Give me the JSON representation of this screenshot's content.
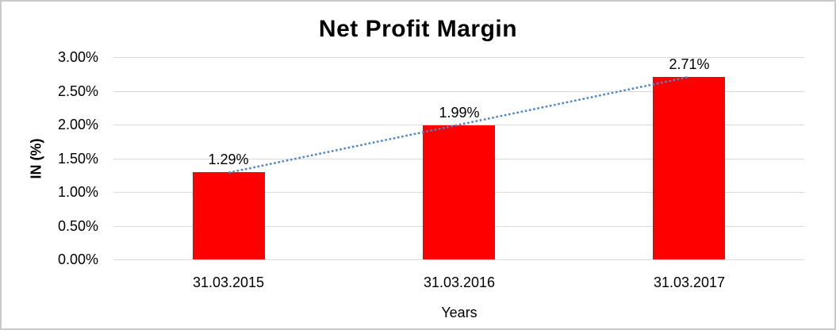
{
  "chart_data": {
    "type": "bar",
    "title": "Net Profit Margin",
    "xlabel": "Years",
    "ylabel": "IN (%)",
    "categories": [
      "31.03.2015",
      "31.03.2016",
      "31.03.2017"
    ],
    "values": [
      1.29,
      1.99,
      2.71
    ],
    "data_labels": [
      "1.29%",
      "1.99%",
      "2.71%"
    ],
    "ylim": [
      0,
      3
    ],
    "ytick_step": 0.5,
    "ytick_labels": [
      "0.00%",
      "0.50%",
      "1.00%",
      "1.50%",
      "2.00%",
      "2.50%",
      "3.00%"
    ],
    "grid": true,
    "legend": false,
    "bar_color": "#ff0000",
    "trendline": {
      "type": "linear",
      "style": "dotted",
      "color": "#4d87cb"
    },
    "gridline_color": "#d9d9d9",
    "text_color": "#000000",
    "border_color": "#c9c9c9",
    "background_color": "#ffffff"
  }
}
